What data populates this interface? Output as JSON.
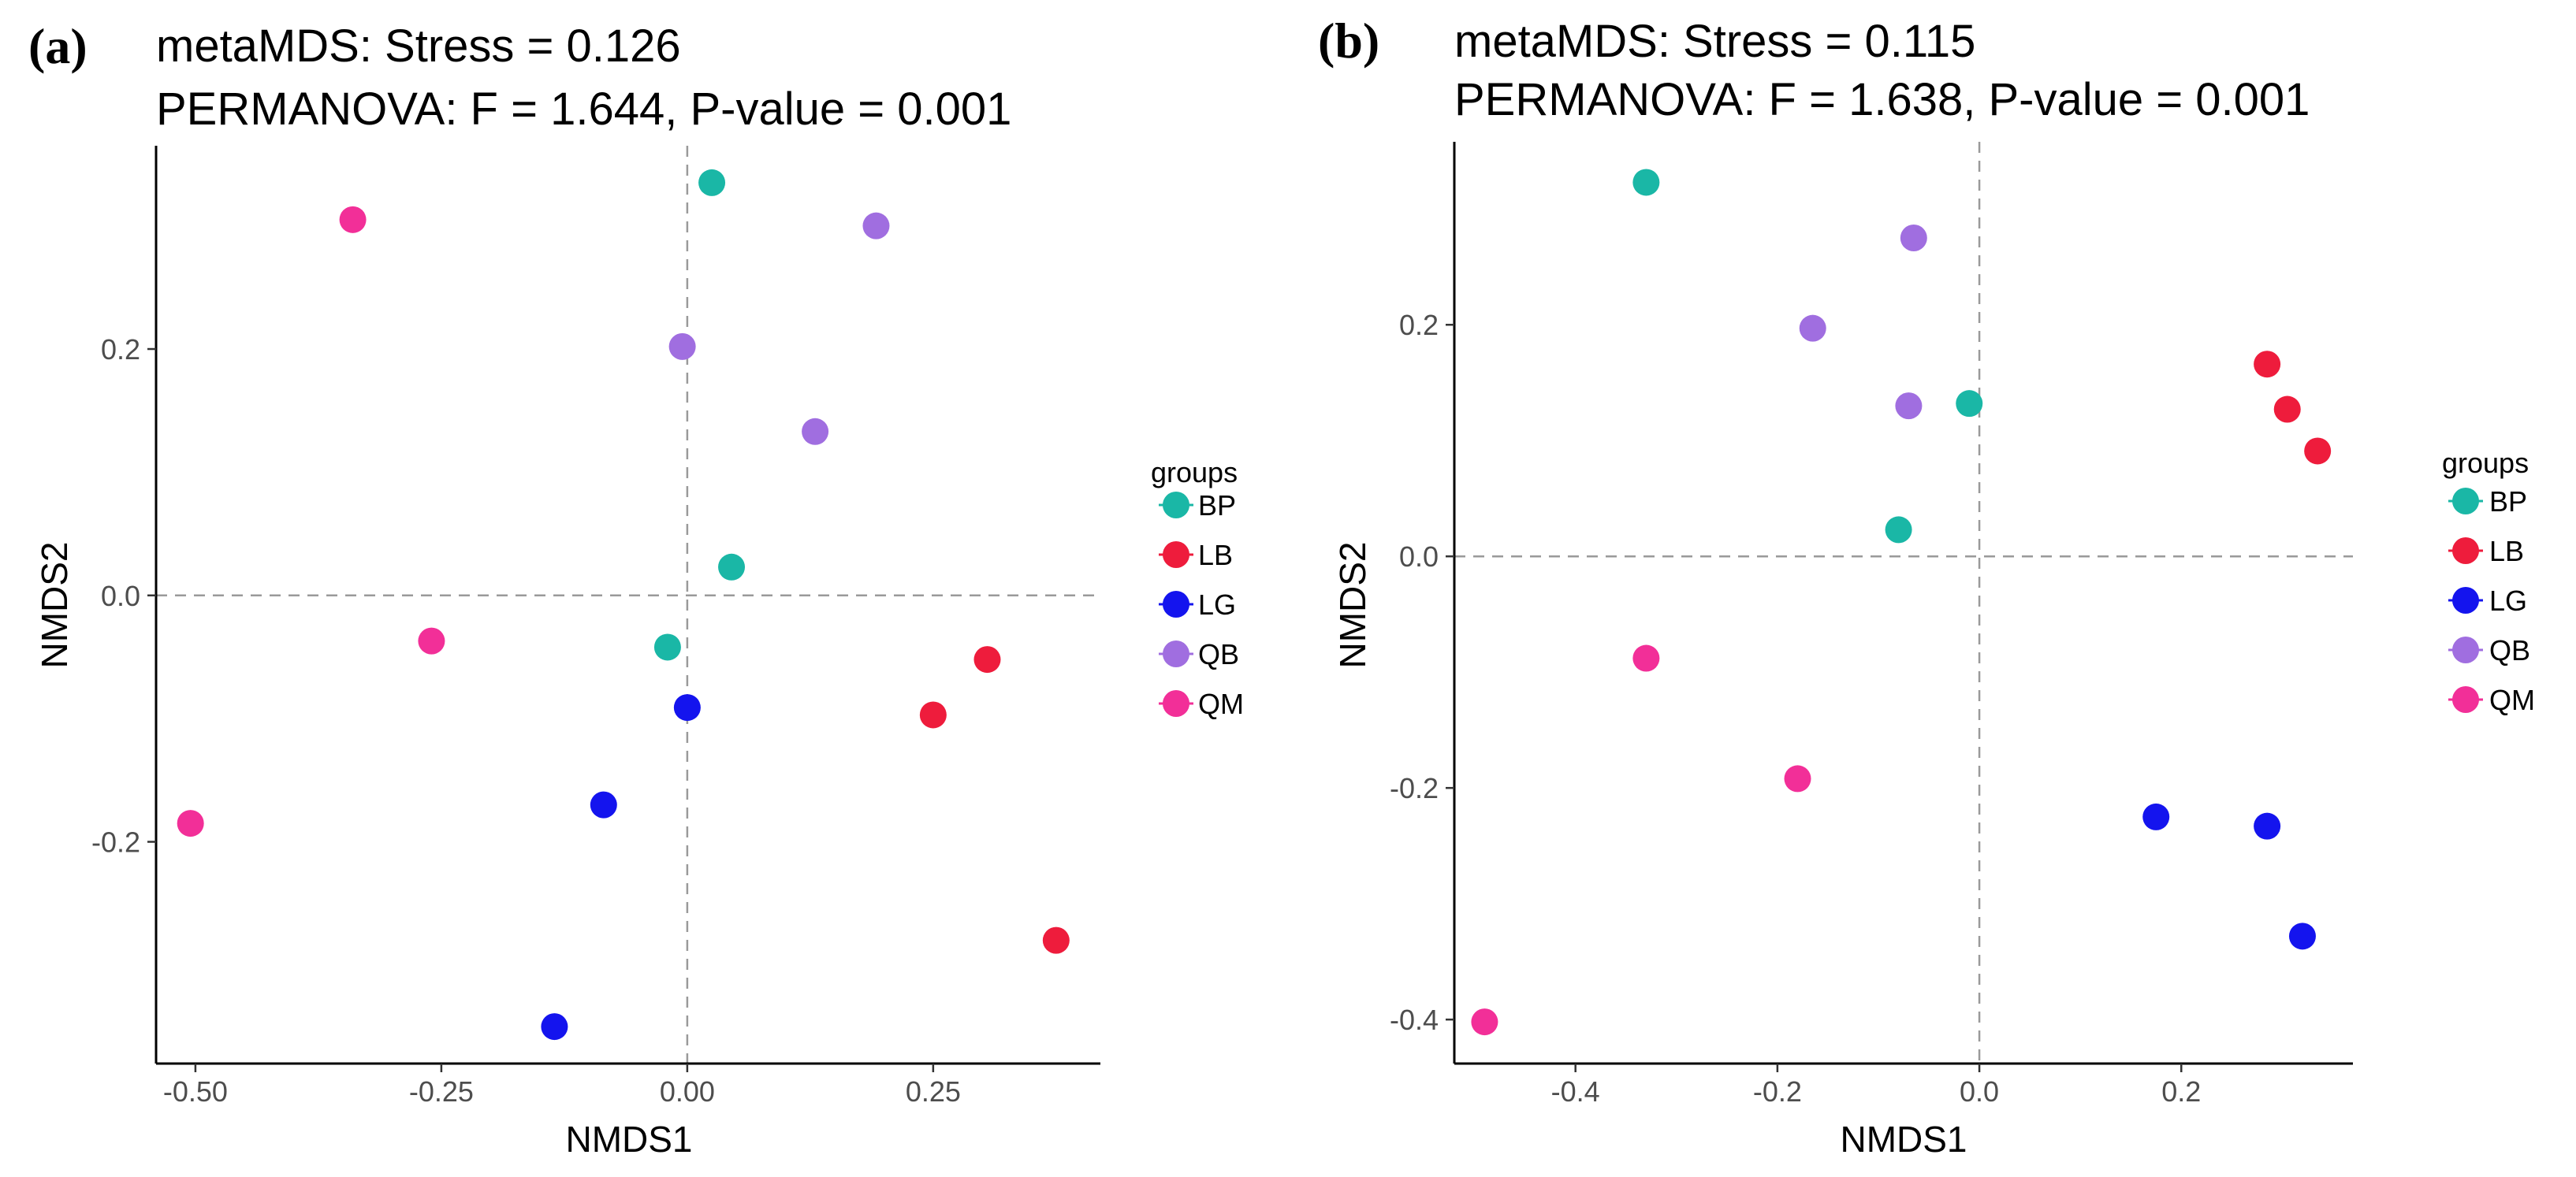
{
  "chart_data": [
    {
      "type": "scatter",
      "panel_label": "(a)",
      "title": "metaMDS: Stress = 0.126",
      "subtitle": "PERMANOVA: F = 1.644, P-value = 0.001",
      "xlabel": "NMDS1",
      "ylabel": "NMDS2",
      "xlim": [
        -0.54,
        0.42
      ],
      "ylim": [
        -0.38,
        0.365
      ],
      "xticks": [
        -0.5,
        -0.25,
        0.0,
        0.25
      ],
      "xtick_labels": [
        "-0.50",
        "-0.25",
        "0.00",
        "0.25"
      ],
      "yticks": [
        -0.2,
        0.0,
        0.2
      ],
      "ytick_labels": [
        "-0.2",
        "0.0",
        "0.2"
      ],
      "reference_lines": {
        "x": 0,
        "y": 0
      },
      "legend_title": "groups",
      "legend_position": "right",
      "series": [
        {
          "name": "BP",
          "color": "#1ab7a6",
          "points": [
            [
              0.025,
              0.335
            ],
            [
              0.045,
              0.023
            ],
            [
              -0.02,
              -0.042
            ]
          ]
        },
        {
          "name": "LB",
          "color": "#ee1c3c",
          "points": [
            [
              0.305,
              -0.052
            ],
            [
              0.25,
              -0.097
            ],
            [
              0.375,
              -0.28
            ]
          ]
        },
        {
          "name": "LG",
          "color": "#1414ee",
          "points": [
            [
              0.0,
              -0.091
            ],
            [
              -0.085,
              -0.17
            ],
            [
              -0.135,
              -0.35
            ]
          ]
        },
        {
          "name": "QB",
          "color": "#a06ee0",
          "points": [
            [
              0.192,
              0.3
            ],
            [
              -0.005,
              0.202
            ],
            [
              0.13,
              0.133
            ]
          ]
        },
        {
          "name": "QM",
          "color": "#f22f98",
          "points": [
            [
              -0.34,
              0.305
            ],
            [
              -0.26,
              -0.037
            ],
            [
              -0.505,
              -0.185
            ]
          ]
        }
      ]
    },
    {
      "type": "scatter",
      "panel_label": "(b)",
      "title": "metaMDS: Stress = 0.115",
      "subtitle": "PERMANOVA: F = 1.638, P-value = 0.001",
      "xlabel": "NMDS1",
      "ylabel": "NMDS2",
      "xlim": [
        -0.52,
        0.37
      ],
      "ylim": [
        -0.438,
        0.358
      ],
      "xticks": [
        -0.4,
        -0.2,
        0.0,
        0.2
      ],
      "xtick_labels": [
        "-0.4",
        "-0.2",
        "0.0",
        "0.2"
      ],
      "yticks": [
        -0.4,
        -0.2,
        0.0,
        0.2
      ],
      "ytick_labels": [
        "-0.4",
        "-0.2",
        "0.0",
        "0.2"
      ],
      "reference_lines": {
        "x": 0,
        "y": 0
      },
      "legend_title": "groups",
      "legend_position": "right",
      "series": [
        {
          "name": "BP",
          "color": "#1ab7a6",
          "points": [
            [
              -0.33,
              0.323
            ],
            [
              -0.01,
              0.132
            ],
            [
              -0.08,
              0.023
            ]
          ]
        },
        {
          "name": "LB",
          "color": "#ee1c3c",
          "points": [
            [
              0.285,
              0.166
            ],
            [
              0.305,
              0.127
            ],
            [
              0.335,
              0.091
            ]
          ]
        },
        {
          "name": "LG",
          "color": "#1414ee",
          "points": [
            [
              0.175,
              -0.225
            ],
            [
              0.285,
              -0.233
            ],
            [
              0.32,
              -0.328
            ]
          ]
        },
        {
          "name": "QB",
          "color": "#a06ee0",
          "points": [
            [
              -0.065,
              0.275
            ],
            [
              -0.165,
              0.197
            ],
            [
              -0.07,
              0.13
            ]
          ]
        },
        {
          "name": "QM",
          "color": "#f22f98",
          "points": [
            [
              -0.33,
              -0.088
            ],
            [
              -0.18,
              -0.192
            ],
            [
              -0.49,
              -0.402
            ]
          ]
        }
      ]
    }
  ]
}
